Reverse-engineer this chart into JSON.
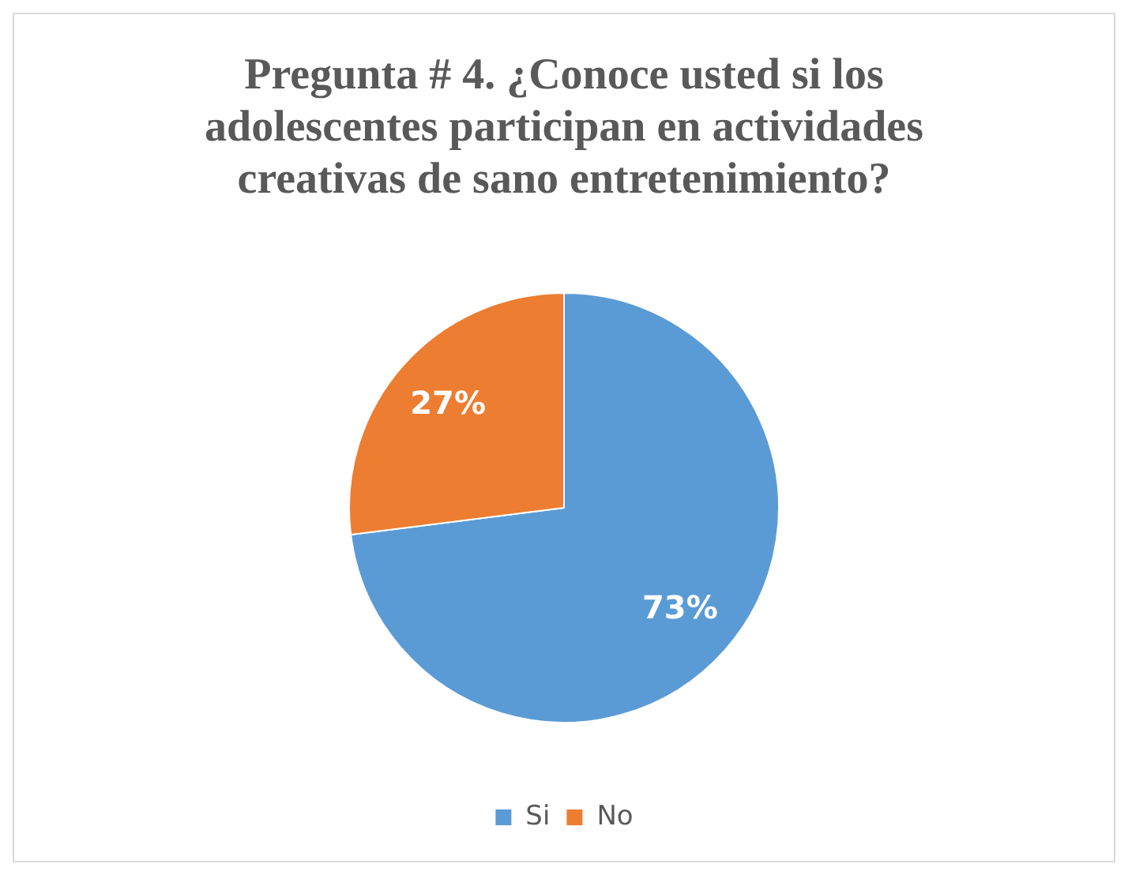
{
  "chart_data": {
    "type": "pie",
    "title": "Pregunta # 4. ¿Conoce usted si los adolescentes participan en actividades creativas de sano entretenimiento?",
    "categories": [
      "Si",
      "No"
    ],
    "values": [
      73,
      27
    ],
    "colors": [
      "#5b9bd5",
      "#ed7d31"
    ],
    "value_labels": [
      "73%",
      "27%"
    ],
    "legend": "bottom"
  }
}
